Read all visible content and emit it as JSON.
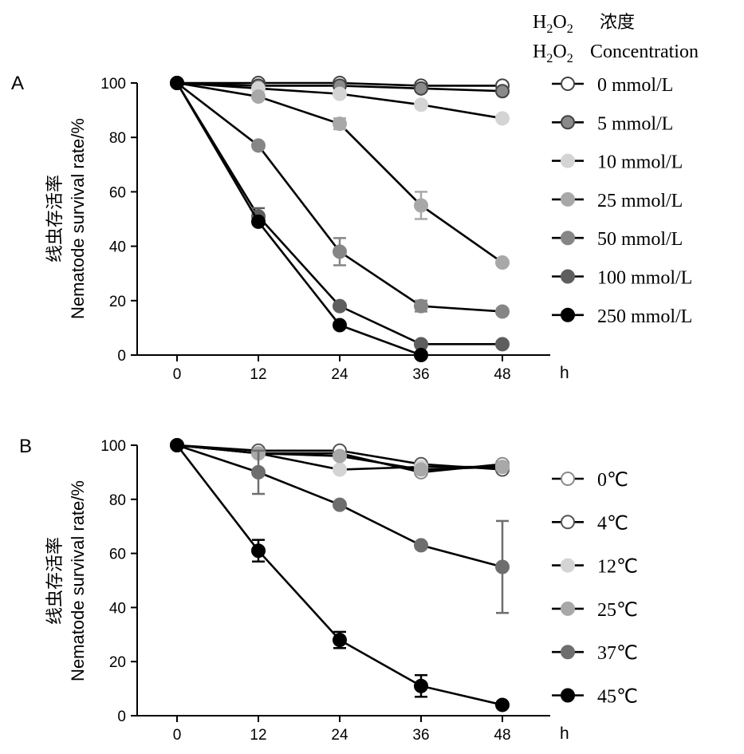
{
  "chart_data": [
    {
      "type": "line",
      "panel_label": "A",
      "xlabel": "h",
      "ylabel_cn": "线虫存活率",
      "ylabel_en": "Nematode survival rate/%",
      "x": [
        0,
        12,
        24,
        36,
        48
      ],
      "ylim": [
        0,
        100
      ],
      "yticks": [
        0,
        20,
        40,
        60,
        80,
        100
      ],
      "grid": false,
      "legend_position": "right",
      "legend_title": {
        "formula": {
          "H": "H",
          "sub1": "2",
          "O": "O",
          "sub2": "2"
        },
        "line1_cn": "浓度",
        "line2_en": "Concentration"
      },
      "series": [
        {
          "name": "0 mmol/L",
          "values": [
            100,
            100,
            100,
            99,
            99
          ],
          "errors": [
            0,
            0,
            0,
            0,
            0
          ],
          "fill": "#ffffff",
          "stroke": "#444444"
        },
        {
          "name": "5 mmol/L",
          "values": [
            100,
            99,
            99,
            98,
            97
          ],
          "errors": [
            0,
            0,
            0,
            0,
            0
          ],
          "fill": "#8a8a8a",
          "stroke": "#444444"
        },
        {
          "name": "10 mmol/L",
          "values": [
            100,
            98,
            96,
            92,
            87
          ],
          "errors": [
            0,
            0,
            0,
            0,
            0
          ],
          "fill": "#d4d4d4",
          "stroke": "#d4d4d4"
        },
        {
          "name": "25 mmol/L",
          "values": [
            100,
            95,
            85,
            55,
            34
          ],
          "errors": [
            0,
            0,
            2,
            5,
            1
          ],
          "fill": "#a8a8a8",
          "stroke": "#a8a8a8"
        },
        {
          "name": "50 mmol/L",
          "values": [
            100,
            77,
            38,
            18,
            16
          ],
          "errors": [
            0,
            1,
            5,
            2,
            1
          ],
          "fill": "#868686",
          "stroke": "#868686"
        },
        {
          "name": "100 mmol/L",
          "values": [
            100,
            51,
            18,
            4,
            4
          ],
          "errors": [
            0,
            3,
            0,
            0,
            0
          ],
          "fill": "#5e5e5e",
          "stroke": "#5e5e5e"
        },
        {
          "name": "250 mmol/L",
          "values": [
            100,
            49,
            11,
            0,
            null
          ],
          "errors": [
            0,
            0,
            0,
            0,
            0
          ],
          "fill": "#000000",
          "stroke": "#000000"
        }
      ]
    },
    {
      "type": "line",
      "panel_label": "B",
      "xlabel": "h",
      "ylabel_cn": "线虫存活率",
      "ylabel_en": "Nematode survival rate/%",
      "x": [
        0,
        12,
        24,
        36,
        48
      ],
      "ylim": [
        0,
        100
      ],
      "yticks": [
        0,
        20,
        40,
        60,
        80,
        100
      ],
      "grid": false,
      "legend_position": "right",
      "series": [
        {
          "name": "0℃",
          "values": [
            100,
            97,
            97,
            90,
            93
          ],
          "errors": [
            0,
            0,
            0,
            0,
            0
          ],
          "fill": "#ffffff",
          "stroke": "#8a8a8a"
        },
        {
          "name": "4℃",
          "values": [
            100,
            98,
            98,
            93,
            91
          ],
          "errors": [
            0,
            0,
            0,
            0,
            0
          ],
          "fill": "#ffffff",
          "stroke": "#555555"
        },
        {
          "name": "12℃",
          "values": [
            100,
            97,
            91,
            92,
            92
          ],
          "errors": [
            0,
            0,
            0,
            0,
            0
          ],
          "fill": "#d4d4d4",
          "stroke": "#d4d4d4"
        },
        {
          "name": "25℃",
          "values": [
            100,
            97,
            96,
            91,
            92
          ],
          "errors": [
            0,
            0,
            0,
            0,
            0
          ],
          "fill": "#a8a8a8",
          "stroke": "#a8a8a8"
        },
        {
          "name": "37℃",
          "values": [
            100,
            90,
            78,
            63,
            55
          ],
          "errors": [
            0,
            8,
            1,
            1,
            17
          ],
          "fill": "#6e6e6e",
          "stroke": "#6e6e6e"
        },
        {
          "name": "45℃",
          "values": [
            100,
            61,
            28,
            11,
            4
          ],
          "errors": [
            0,
            4,
            3,
            4,
            0
          ],
          "fill": "#000000",
          "stroke": "#000000"
        }
      ]
    }
  ]
}
